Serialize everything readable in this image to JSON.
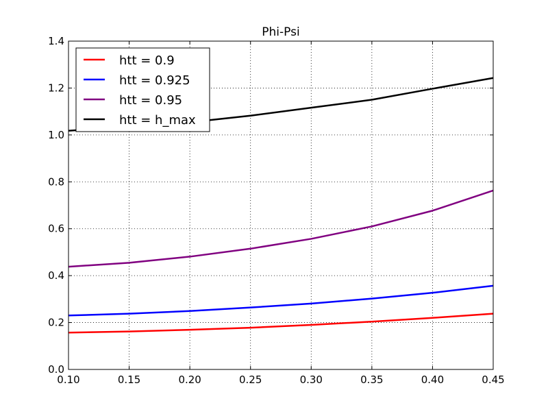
{
  "chart_data": {
    "type": "line",
    "title": "Phi-Psi",
    "xlabel": "",
    "ylabel": "",
    "xlim": [
      0.1,
      0.45
    ],
    "ylim": [
      0.0,
      1.4
    ],
    "x_ticks": [
      0.1,
      0.15,
      0.2,
      0.25,
      0.3,
      0.35,
      0.4,
      0.45
    ],
    "y_ticks": [
      0.0,
      0.2,
      0.4,
      0.6,
      0.8,
      1.0,
      1.2,
      1.4
    ],
    "x_tick_labels": [
      "0.10",
      "0.15",
      "0.20",
      "0.25",
      "0.30",
      "0.35",
      "0.40",
      "0.45"
    ],
    "y_tick_labels": [
      "0.0",
      "0.2",
      "0.4",
      "0.6",
      "0.8",
      "1.0",
      "1.2",
      "1.4"
    ],
    "grid": true,
    "legend_position": "top-left",
    "x": [
      0.1,
      0.15,
      0.2,
      0.25,
      0.3,
      0.35,
      0.4,
      0.45
    ],
    "series": [
      {
        "name": "htt = 0.9",
        "color": "#ff0000",
        "values": [
          0.157,
          0.162,
          0.169,
          0.178,
          0.19,
          0.204,
          0.22,
          0.238
        ]
      },
      {
        "name": "htt = 0.925",
        "color": "#0000ff",
        "values": [
          0.23,
          0.238,
          0.249,
          0.264,
          0.281,
          0.302,
          0.327,
          0.357
        ]
      },
      {
        "name": "htt = 0.95",
        "color": "#800080",
        "values": [
          0.438,
          0.455,
          0.481,
          0.515,
          0.557,
          0.61,
          0.677,
          0.763
        ]
      },
      {
        "name": "htt = h_max",
        "color": "#000000",
        "values": [
          1.018,
          1.035,
          1.054,
          1.082,
          1.116,
          1.15,
          1.197,
          1.243
        ]
      }
    ]
  }
}
